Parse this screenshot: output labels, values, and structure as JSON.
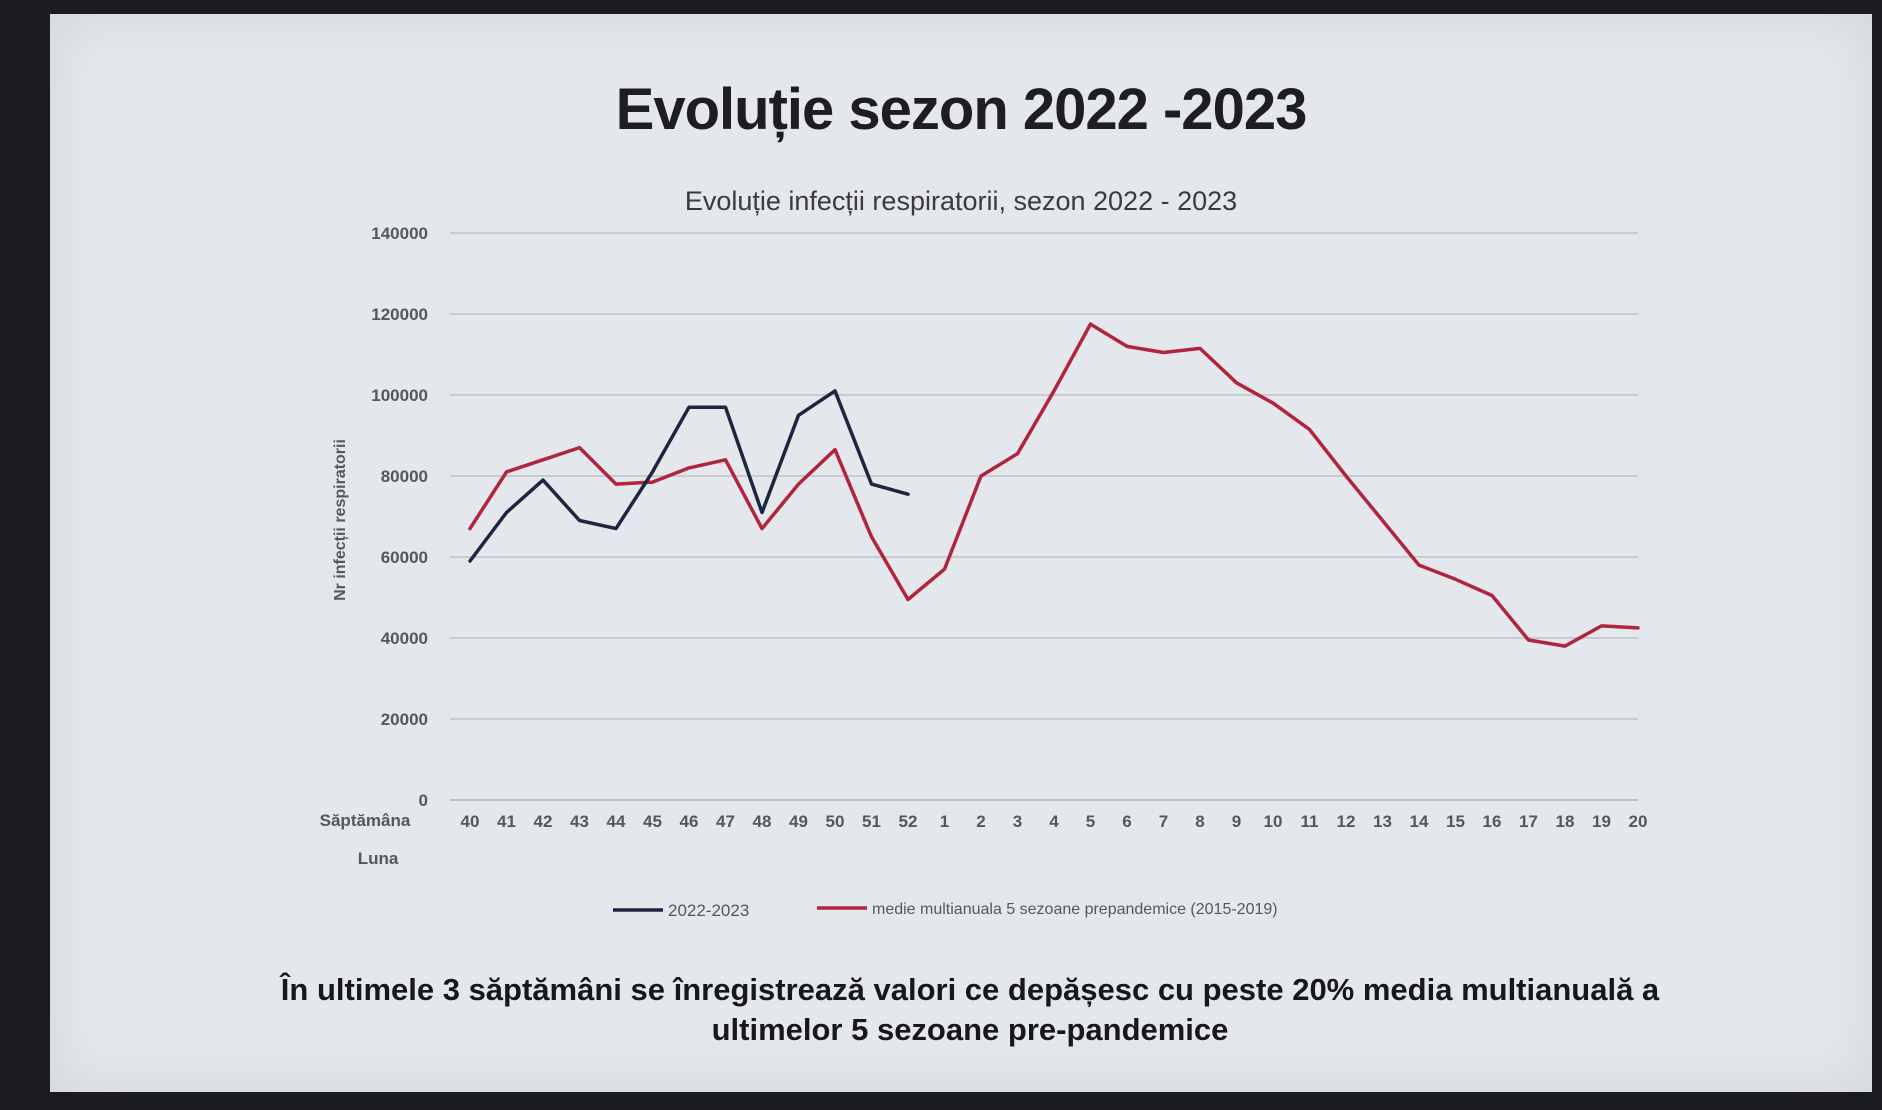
{
  "slide": {
    "title": "Evoluție sezon 2022 -2023",
    "caption_line1": "În ultimele 3 săptămâni se înregistrează valori ce depășesc cu peste 20% media multianuală a",
    "caption_line2": "ultimelor 5 sezoane pre-pandemice"
  },
  "chart_data": {
    "type": "line",
    "title": "Evoluție infecții respiratorii, sezon 2022 - 2023",
    "ylabel": "Nr infecții respiratorii",
    "xlabel_rows": [
      "Săptămâna",
      "Luna"
    ],
    "ylim": [
      0,
      140000
    ],
    "yticks": [
      0,
      20000,
      40000,
      60000,
      80000,
      100000,
      120000,
      140000
    ],
    "grid": true,
    "legend_position": "bottom",
    "categories": [
      "40",
      "41",
      "42",
      "43",
      "44",
      "45",
      "46",
      "47",
      "48",
      "49",
      "50",
      "51",
      "52",
      "1",
      "2",
      "3",
      "4",
      "5",
      "6",
      "7",
      "8",
      "9",
      "10",
      "11",
      "12",
      "13",
      "14",
      "15",
      "16",
      "17",
      "18",
      "19",
      "20"
    ],
    "series": [
      {
        "name": "2022-2023",
        "color": "#1c2541",
        "values": [
          59000,
          71000,
          79000,
          69000,
          67000,
          81000,
          97000,
          97000,
          71000,
          95000,
          101000,
          78000,
          75500,
          null,
          null,
          null,
          null,
          null,
          null,
          null,
          null,
          null,
          null,
          null,
          null,
          null,
          null,
          null,
          null,
          null,
          null,
          null,
          null
        ]
      },
      {
        "name": "medie multianuala 5 sezoane prepandemice (2015-2019)",
        "color": "#b0243e",
        "values": [
          67000,
          81000,
          84000,
          87000,
          78000,
          78500,
          82000,
          84000,
          67000,
          78000,
          86500,
          65000,
          49500,
          57000,
          80000,
          85500,
          101000,
          117500,
          112000,
          110500,
          111500,
          103000,
          98000,
          91500,
          80000,
          69000,
          58000,
          54500,
          50500,
          39500,
          38000,
          43000,
          42500
        ]
      }
    ]
  }
}
